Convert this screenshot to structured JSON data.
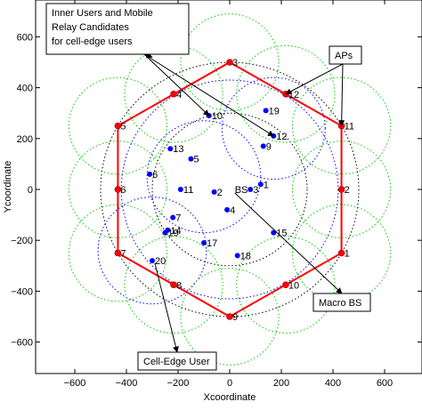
{
  "chart_data": {
    "type": "scatter",
    "xlabel": "Xcoordinate",
    "ylabel": "Ycoordinate",
    "xlim": [
      -750,
      750
    ],
    "ylim": [
      -750,
      700
    ],
    "x_ticks": [
      -600,
      -400,
      -200,
      0,
      200,
      400,
      600
    ],
    "y_ticks": [
      -600,
      -400,
      -200,
      0,
      200,
      400,
      600
    ],
    "x_tick_labels": [
      "−600",
      "−400",
      "−200",
      "0",
      "200",
      "400",
      "600"
    ],
    "y_tick_labels": [
      "−600",
      "−400",
      "−200",
      "0",
      "200",
      "400",
      "600"
    ],
    "grid": false,
    "colors": {
      "user": "#0000ff",
      "ap": "#ff0000",
      "hexagon": "#ff0000",
      "cell_circle": "#00cc00",
      "ring": "#000000",
      "coverage": "#0000ff"
    },
    "hexagon_vertices": [
      [
        0,
        500
      ],
      [
        433,
        250
      ],
      [
        433,
        -250
      ],
      [
        0,
        -500
      ],
      [
        -433,
        -250
      ],
      [
        -433,
        250
      ]
    ],
    "access_points": [
      {
        "label": "1",
        "x": 433,
        "y": -250
      },
      {
        "label": "2",
        "x": 433,
        "y": 0
      },
      {
        "label": "3",
        "x": 0,
        "y": 500
      },
      {
        "label": "4",
        "x": -217,
        "y": 375
      },
      {
        "label": "5",
        "x": -433,
        "y": 250
      },
      {
        "label": "6",
        "x": -433,
        "y": 0
      },
      {
        "label": "7",
        "x": -433,
        "y": -250
      },
      {
        "label": "8",
        "x": -217,
        "y": -375
      },
      {
        "label": "9",
        "x": 0,
        "y": -500
      },
      {
        "label": "10",
        "x": 217,
        "y": -375
      },
      {
        "label": "11",
        "x": 433,
        "y": 250
      },
      {
        "label": "12",
        "x": 217,
        "y": 375
      }
    ],
    "users": [
      {
        "label": "1",
        "x": 120,
        "y": 20
      },
      {
        "label": "3",
        "x": 80,
        "y": 0
      },
      {
        "label": "4",
        "x": -10,
        "y": -80
      },
      {
        "label": "2",
        "x": -60,
        "y": -10
      },
      {
        "label": "11",
        "x": -190,
        "y": 0
      },
      {
        "label": "6",
        "x": -310,
        "y": 60
      },
      {
        "label": "13",
        "x": -230,
        "y": 160
      },
      {
        "label": "5",
        "x": -150,
        "y": 120
      },
      {
        "label": "7",
        "x": -220,
        "y": -110
      },
      {
        "label": "14",
        "x": -240,
        "y": -160
      },
      {
        "label": "19",
        "x": -250,
        "y": -170
      },
      {
        "label": "17",
        "x": -100,
        "y": -210
      },
      {
        "label": "15",
        "x": 170,
        "y": -170
      },
      {
        "label": "18",
        "x": 30,
        "y": -260
      },
      {
        "label": "20",
        "x": -300,
        "y": -280
      },
      {
        "label": "10",
        "x": -80,
        "y": 290
      },
      {
        "label": "9",
        "x": 130,
        "y": 170
      },
      {
        "label": "12",
        "x": 170,
        "y": 210
      },
      {
        "label": "19",
        "x": 140,
        "y": 310
      }
    ],
    "bs_label": {
      "text": "BS",
      "x": 20,
      "y": 0
    },
    "annotations": [
      {
        "name": "inner-users",
        "lines": [
          "Inner Users and Mobile",
          "Relay Candidates",
          "for cell-edge users"
        ]
      },
      {
        "name": "aps",
        "lines": [
          "APs"
        ]
      },
      {
        "name": "macro-bs",
        "lines": [
          "Macro BS"
        ]
      },
      {
        "name": "cell-edge-user",
        "lines": [
          "Cell-Edge User"
        ]
      }
    ]
  }
}
